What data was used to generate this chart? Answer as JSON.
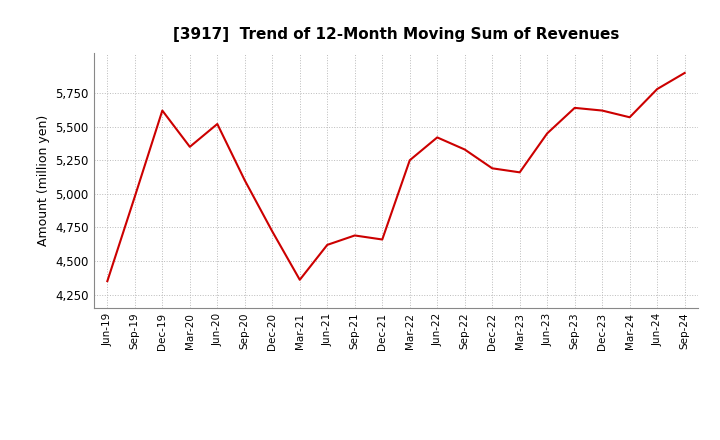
{
  "title": "[3917]  Trend of 12-Month Moving Sum of Revenues",
  "ylabel": "Amount (million yen)",
  "line_color": "#cc0000",
  "background_color": "#ffffff",
  "plot_bg_color": "#ffffff",
  "grid_color": "#bbbbbb",
  "ylim": [
    4150,
    6050
  ],
  "yticks": [
    4250,
    4500,
    4750,
    5000,
    5250,
    5500,
    5750
  ],
  "x_labels": [
    "Jun-19",
    "Sep-19",
    "Dec-19",
    "Mar-20",
    "Jun-20",
    "Sep-20",
    "Dec-20",
    "Mar-21",
    "Jun-21",
    "Sep-21",
    "Dec-21",
    "Mar-22",
    "Jun-22",
    "Sep-22",
    "Dec-22",
    "Mar-23",
    "Jun-23",
    "Sep-23",
    "Dec-23",
    "Mar-24",
    "Jun-24",
    "Sep-24"
  ],
  "y_values": [
    4350,
    4980,
    5620,
    5350,
    5520,
    5100,
    4720,
    4360,
    4620,
    4690,
    4660,
    5250,
    5420,
    5330,
    5190,
    5160,
    5450,
    5640,
    5620,
    5570,
    5780,
    5900
  ]
}
